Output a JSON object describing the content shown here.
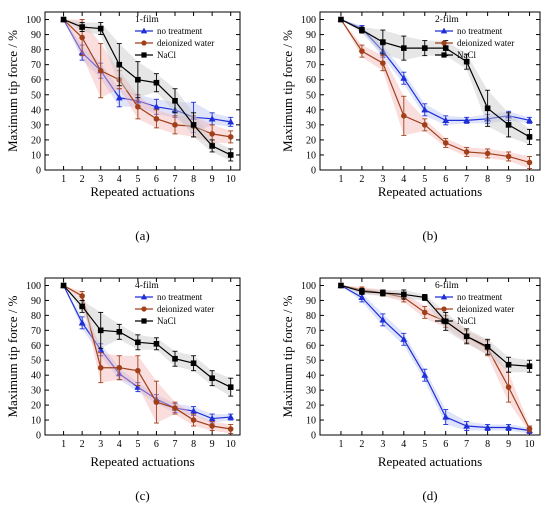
{
  "chart_data": [
    {
      "type": "line",
      "panel_label": "(a)",
      "annotation": "1-film",
      "xlabel": "Repeated actuations",
      "ylabel": "Maximum tip force / %",
      "xlim": [
        0,
        10.5
      ],
      "ylim": [
        0,
        105
      ],
      "xticks": [
        1,
        2,
        3,
        4,
        5,
        6,
        7,
        8,
        9,
        10
      ],
      "yticks": [
        0,
        10,
        20,
        30,
        40,
        50,
        60,
        70,
        80,
        90,
        100
      ],
      "grid": false,
      "legend_position": "top-right",
      "x": [
        1,
        2,
        3,
        4,
        5,
        6,
        7,
        8,
        9,
        10
      ],
      "series": [
        {
          "name": "no treatment",
          "values": [
            100,
            78,
            66,
            48,
            46,
            42,
            40,
            35,
            34,
            32
          ],
          "errors": [
            0,
            5,
            5,
            6,
            4,
            5,
            5,
            10,
            4,
            3
          ]
        },
        {
          "name": "deionized water",
          "values": [
            100,
            88,
            66,
            60,
            42,
            34,
            30,
            29,
            24,
            22
          ],
          "errors": [
            0,
            12,
            18,
            6,
            8,
            6,
            6,
            7,
            6,
            4
          ]
        },
        {
          "name": "NaCl",
          "values": [
            100,
            95,
            94,
            70,
            60,
            58,
            46,
            30,
            16,
            10
          ],
          "errors": [
            0,
            3,
            4,
            14,
            12,
            6,
            8,
            8,
            4,
            4
          ]
        }
      ]
    },
    {
      "type": "line",
      "panel_label": "(b)",
      "annotation": "2-film",
      "xlabel": "Repeated actuations",
      "ylabel": "Maximum tip force / %",
      "xlim": [
        0,
        10.5
      ],
      "ylim": [
        0,
        105
      ],
      "xticks": [
        1,
        2,
        3,
        4,
        5,
        6,
        7,
        8,
        9,
        10
      ],
      "yticks": [
        0,
        10,
        20,
        30,
        40,
        50,
        60,
        70,
        80,
        90,
        100
      ],
      "grid": false,
      "legend_position": "top-right",
      "x": [
        1,
        2,
        3,
        4,
        5,
        6,
        7,
        8,
        9,
        10
      ],
      "series": [
        {
          "name": "no treatment",
          "values": [
            100,
            94,
            79,
            61,
            40,
            33,
            33,
            34,
            36,
            33
          ],
          "errors": [
            0,
            2,
            4,
            4,
            4,
            3,
            2,
            3,
            3,
            2
          ]
        },
        {
          "name": "deionized water",
          "values": [
            100,
            79,
            71,
            36,
            30,
            18,
            12,
            11,
            9,
            5
          ],
          "errors": [
            0,
            4,
            5,
            13,
            4,
            3,
            3,
            3,
            3,
            4
          ]
        },
        {
          "name": "NaCl",
          "values": [
            100,
            93,
            85,
            81,
            81,
            81,
            72,
            41,
            30,
            22
          ],
          "errors": [
            0,
            2,
            8,
            8,
            5,
            5,
            5,
            12,
            8,
            5
          ]
        }
      ]
    },
    {
      "type": "line",
      "panel_label": "(c)",
      "annotation": "4-film",
      "xlabel": "Repeated actuations",
      "ylabel": "Maximum tip force / %",
      "xlim": [
        0,
        10.5
      ],
      "ylim": [
        0,
        105
      ],
      "xticks": [
        1,
        2,
        3,
        4,
        5,
        6,
        7,
        8,
        9,
        10
      ],
      "yticks": [
        0,
        10,
        20,
        30,
        40,
        50,
        60,
        70,
        80,
        90,
        100
      ],
      "grid": false,
      "legend_position": "top-right",
      "x": [
        1,
        2,
        3,
        4,
        5,
        6,
        7,
        8,
        9,
        10
      ],
      "series": [
        {
          "name": "no treatment",
          "values": [
            100,
            75,
            57,
            41,
            32,
            24,
            18,
            16,
            11,
            12
          ],
          "errors": [
            0,
            4,
            4,
            4,
            3,
            3,
            3,
            3,
            3,
            2
          ]
        },
        {
          "name": "deionized water",
          "values": [
            100,
            93,
            45,
            45,
            43,
            22,
            18,
            10,
            6,
            4
          ],
          "errors": [
            0,
            3,
            10,
            8,
            10,
            14,
            4,
            4,
            3,
            3
          ]
        },
        {
          "name": "NaCl",
          "values": [
            100,
            86,
            70,
            69,
            62,
            61,
            51,
            48,
            38,
            32
          ],
          "errors": [
            0,
            4,
            12,
            5,
            5,
            4,
            5,
            5,
            5,
            6
          ]
        }
      ]
    },
    {
      "type": "line",
      "panel_label": "(d)",
      "annotation": "6-film",
      "xlabel": "Repeated actuations",
      "ylabel": "Maximum tip force / %",
      "xlim": [
        0,
        10.5
      ],
      "ylim": [
        0,
        105
      ],
      "xticks": [
        1,
        2,
        3,
        4,
        5,
        6,
        7,
        8,
        9,
        10
      ],
      "yticks": [
        0,
        10,
        20,
        30,
        40,
        50,
        60,
        70,
        80,
        90,
        100
      ],
      "grid": false,
      "legend_position": "top-right",
      "x": [
        1,
        2,
        3,
        4,
        5,
        6,
        7,
        8,
        9,
        10
      ],
      "series": [
        {
          "name": "no treatment",
          "values": [
            100,
            92,
            77,
            64,
            40,
            12,
            6,
            5,
            5,
            3
          ],
          "errors": [
            0,
            3,
            4,
            4,
            4,
            5,
            3,
            2,
            2,
            2
          ]
        },
        {
          "name": "deionized water",
          "values": [
            100,
            97,
            95,
            92,
            82,
            76,
            66,
            58,
            32,
            4
          ],
          "errors": [
            0,
            2,
            2,
            3,
            4,
            4,
            4,
            5,
            10,
            2
          ]
        },
        {
          "name": "NaCl",
          "values": [
            100,
            96,
            95,
            94,
            92,
            76,
            66,
            59,
            47,
            46
          ],
          "errors": [
            0,
            2,
            2,
            3,
            2,
            6,
            5,
            5,
            5,
            4
          ]
        }
      ]
    }
  ],
  "series_styles": [
    {
      "color": "#1f2fd8",
      "marker": "triangle",
      "band": "#b8c4f4"
    },
    {
      "color": "#a0401a",
      "marker": "circle",
      "band": "#f4b4b4"
    },
    {
      "color": "#000000",
      "marker": "square",
      "band": "#c8c8c8"
    }
  ]
}
